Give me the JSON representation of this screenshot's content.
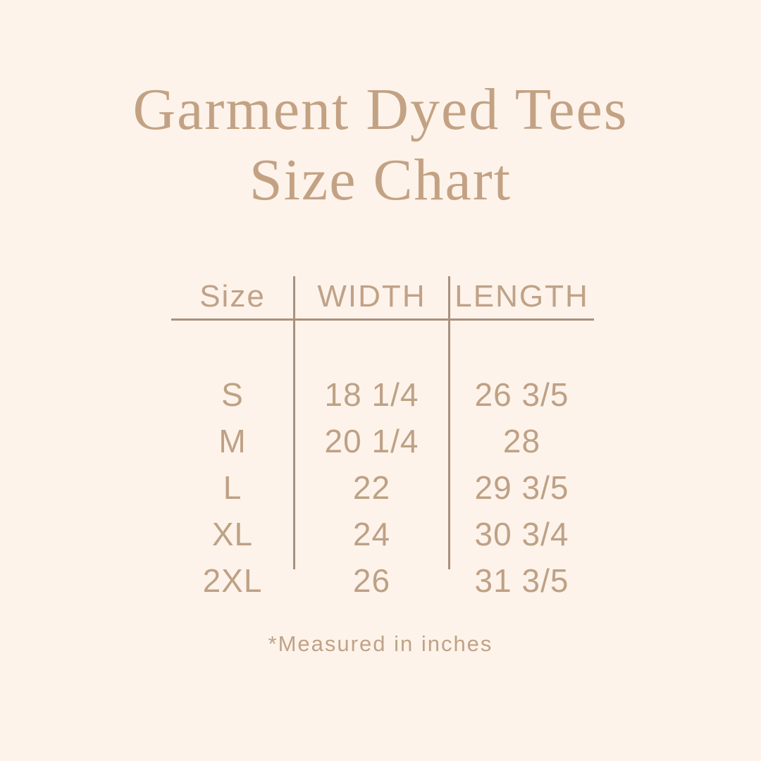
{
  "header": {
    "title_line1": "Garment Dyed Tees",
    "title_line2": "Size Chart"
  },
  "chart_data": {
    "type": "table",
    "title": "Garment Dyed Tees Size Chart",
    "columns": [
      "Size",
      "WIDTH",
      "LENGTH"
    ],
    "rows": [
      [
        "S",
        "18 1/4",
        "26 3/5"
      ],
      [
        "M",
        "20 1/4",
        "28"
      ],
      [
        "L",
        "22",
        "29 3/5"
      ],
      [
        "XL",
        "24",
        "30 3/4"
      ],
      [
        "2XL",
        "26",
        "31 3/5"
      ]
    ],
    "footnote": "*Measured in inches",
    "units": "inches",
    "layout": {
      "gridlines": "header-rule-and-column-dividers",
      "legend": "none"
    }
  },
  "colors": {
    "background": "#FDF3EA",
    "title_text": "#C3A284",
    "table_text": "#BEA186",
    "rule_lines": "#A8917E"
  }
}
